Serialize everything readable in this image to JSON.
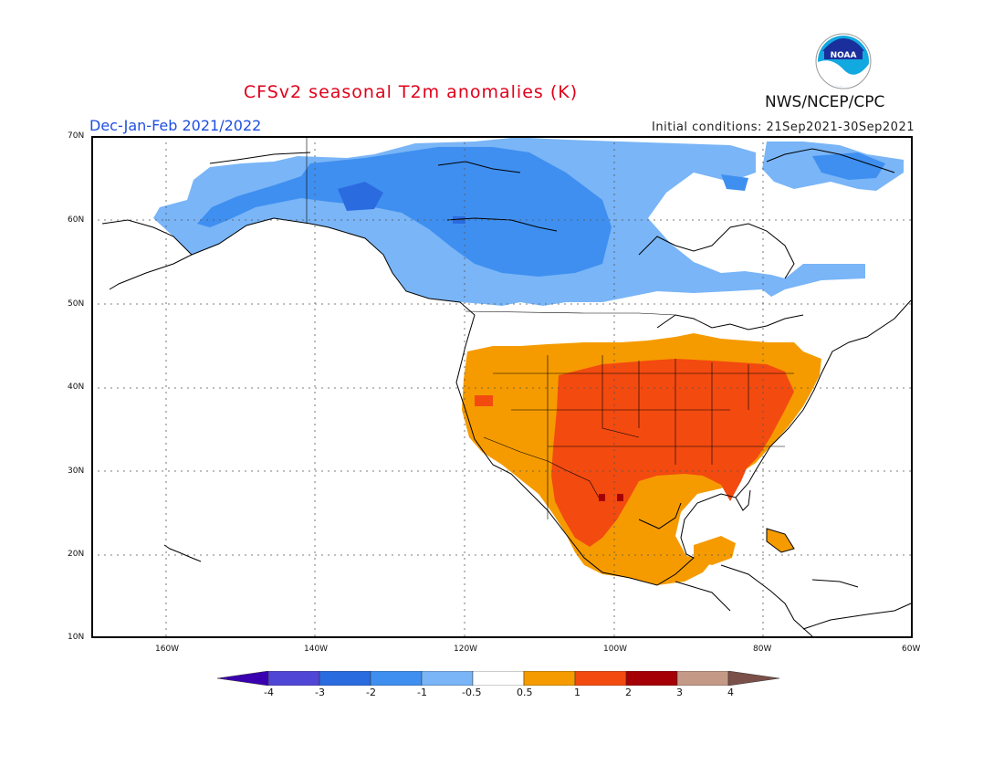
{
  "header": {
    "title": "CFSv2 seasonal T2m anomalies (K)",
    "season": "Dec-Jan-Feb 2021/2022",
    "initial_conditions": "Initial conditions: 21Sep2021-30Sep2021",
    "agency": "NWS/NCEP/CPC",
    "logo_text": "NOAA"
  },
  "map": {
    "lat_labels": [
      "70N",
      "60N",
      "50N",
      "40N",
      "30N",
      "20N",
      "10N"
    ],
    "lon_labels": [
      "160W",
      "140W",
      "120W",
      "100W",
      "80W",
      "60W"
    ],
    "region": "North America",
    "gridlines": true
  },
  "colorbar": {
    "tick_labels": [
      "-4",
      "-3",
      "-2",
      "-1",
      "-0.5",
      "0.5",
      "1",
      "2",
      "3",
      "4"
    ],
    "colors": [
      "#3a00b0",
      "#5046d6",
      "#2a6be0",
      "#3f8ff0",
      "#79b5f7",
      "#ffffff",
      "#f59b00",
      "#f34a10",
      "#a50005",
      "#c49a87",
      "#7a5048"
    ]
  }
}
